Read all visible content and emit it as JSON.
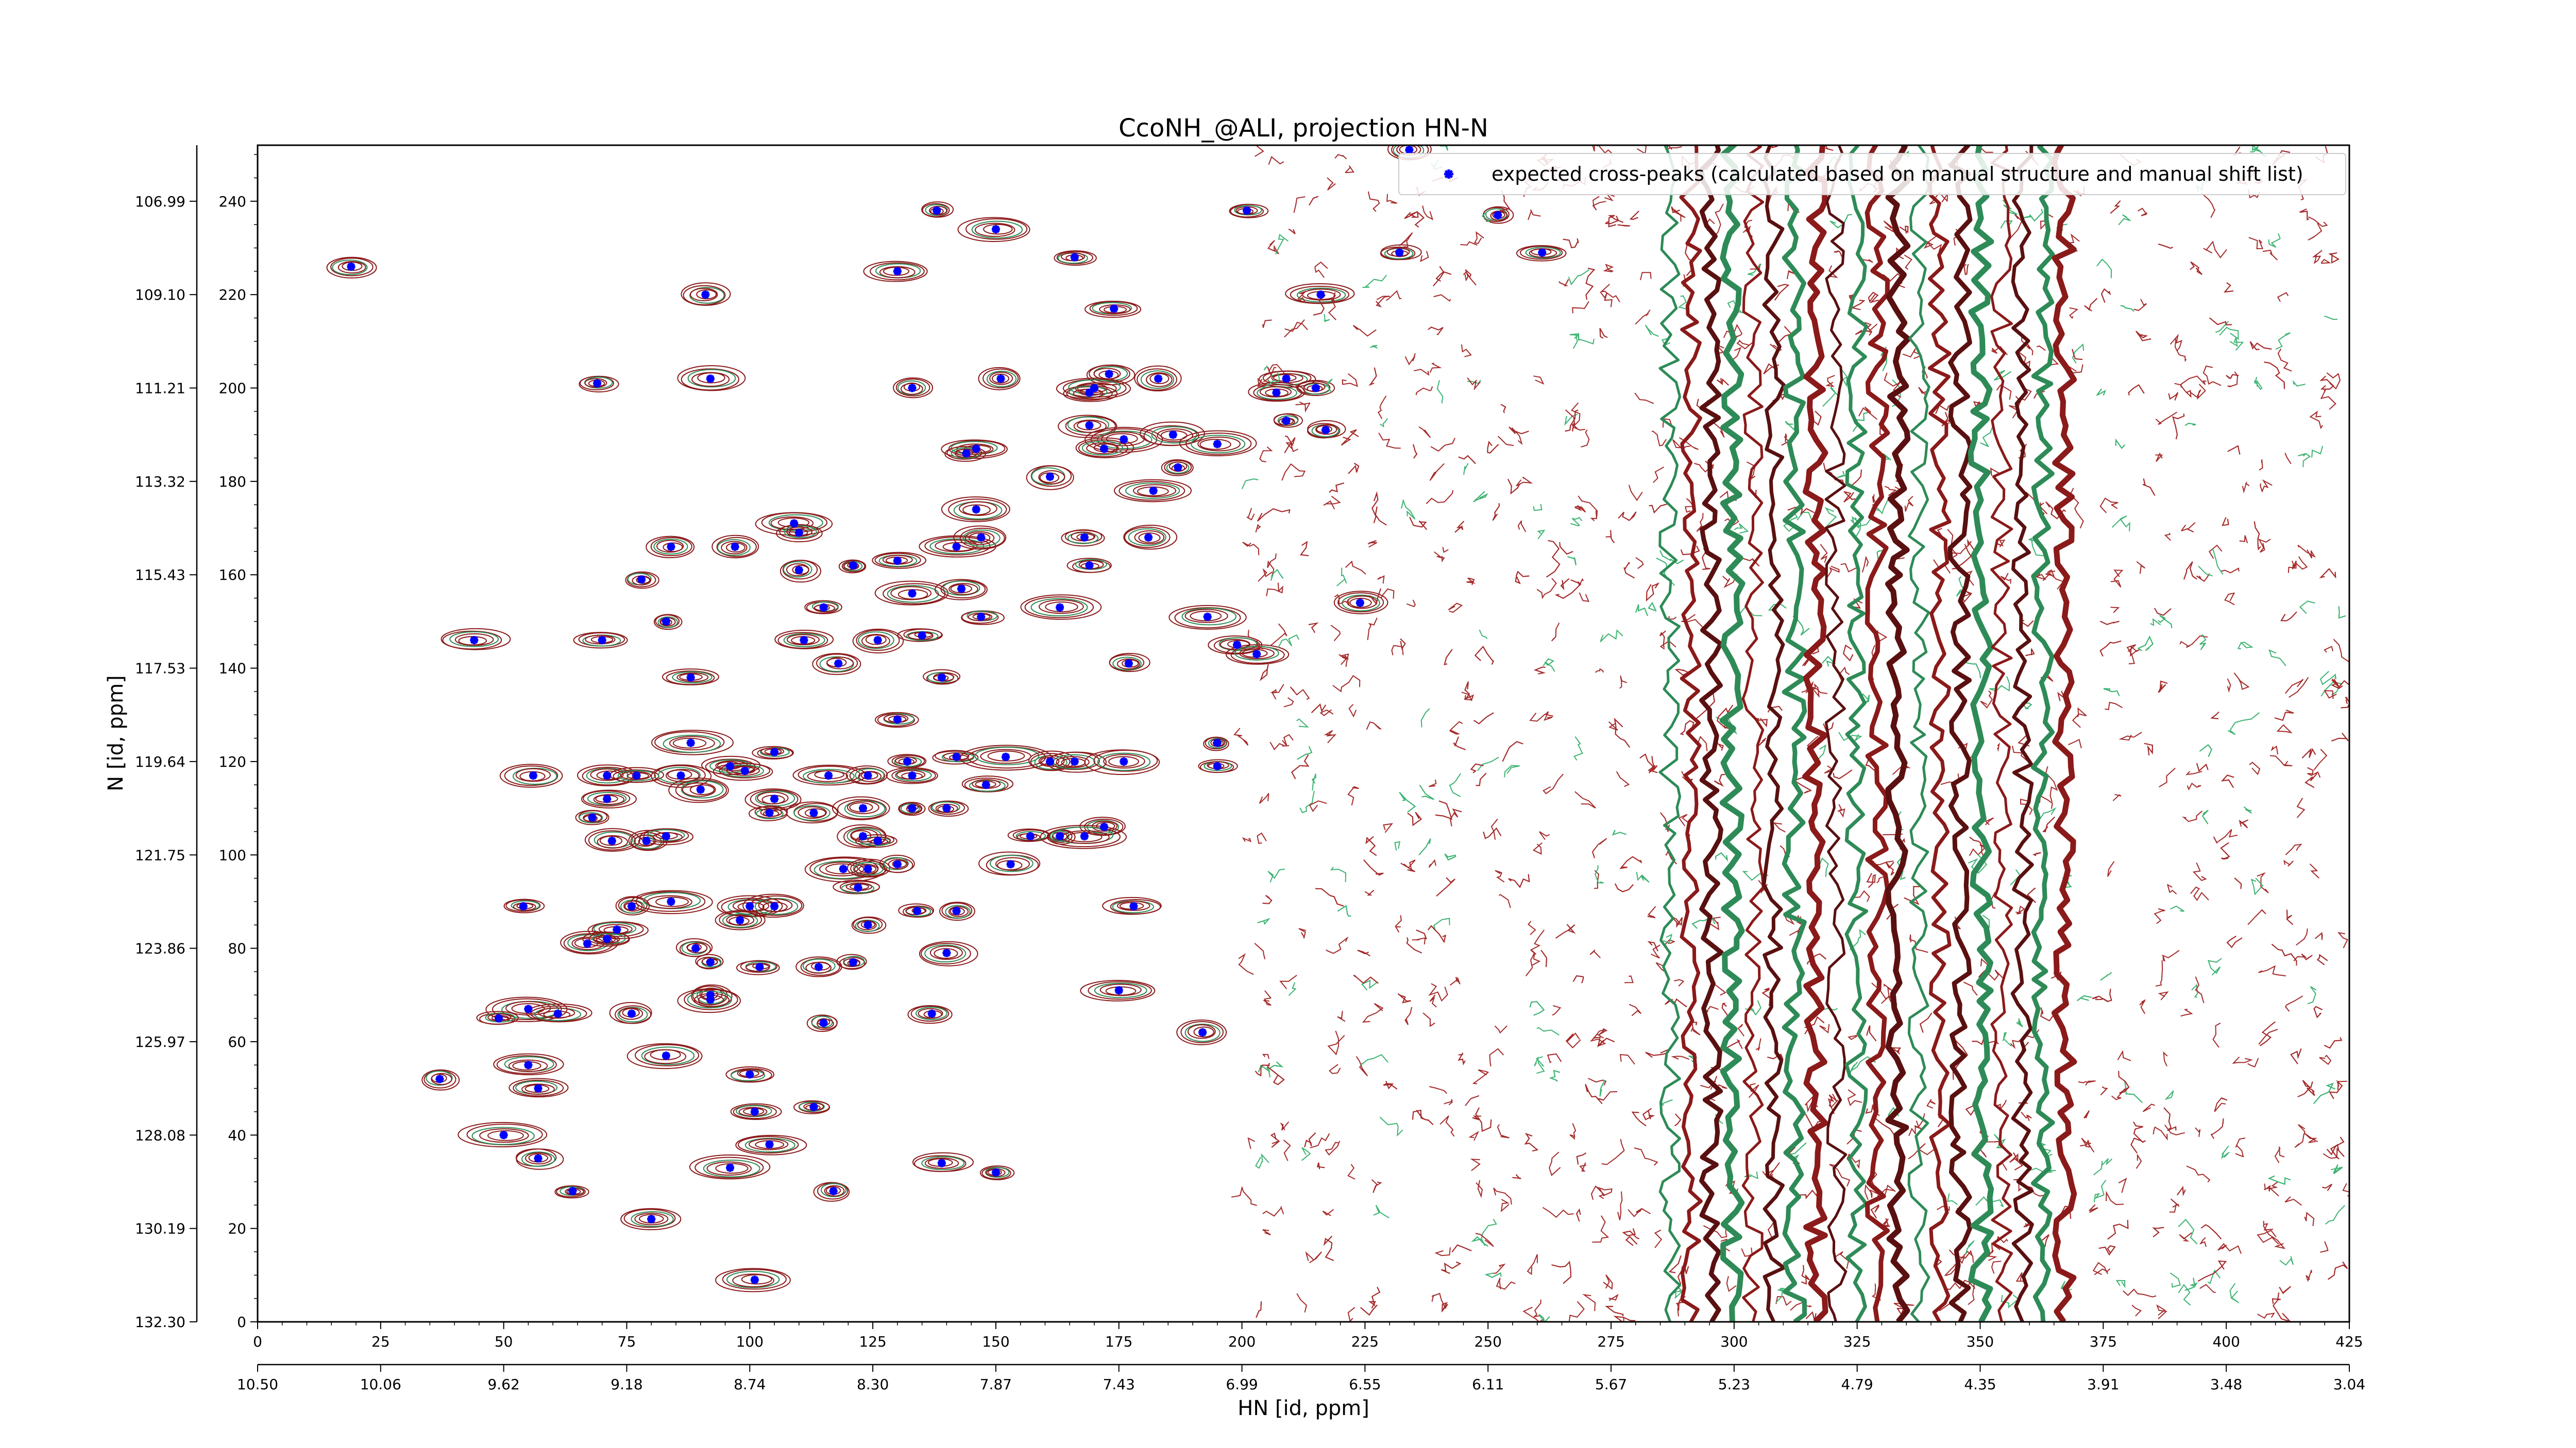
{
  "chart_data": {
    "type": "scatter",
    "title": "CcoNH_@ALI, projection HN-N",
    "xlabel": "HN [id, ppm]",
    "ylabel": "N [id, ppm]",
    "xlim": [
      0,
      425
    ],
    "ylim": [
      0,
      252
    ],
    "x_ticks": [
      0,
      25,
      50,
      75,
      100,
      125,
      150,
      175,
      200,
      225,
      250,
      275,
      300,
      325,
      350,
      375,
      400,
      425
    ],
    "y_ticks": [
      0,
      20,
      40,
      60,
      80,
      100,
      120,
      140,
      160,
      180,
      200,
      220,
      240
    ],
    "x_ppm_ticks": [
      "10.50",
      "10.06",
      "9.62",
      "9.18",
      "8.74",
      "8.30",
      "7.87",
      "7.43",
      "6.99",
      "6.55",
      "6.11",
      "5.67",
      "5.23",
      "4.79",
      "4.35",
      "3.91",
      "3.48",
      "3.04"
    ],
    "y_ppm_ticks": [
      "132.30",
      "130.19",
      "128.08",
      "125.97",
      "123.86",
      "121.75",
      "119.64",
      "117.53",
      "115.43",
      "113.32",
      "111.21",
      "109.10",
      "106.99"
    ],
    "grid": false,
    "legend_position": "top-right",
    "series": [
      {
        "name": "expected cross-peaks (calculated based on manual structure and manual shift list)",
        "color": "#0000ff",
        "marker": "x",
        "points": [
          [
            19,
            226
          ],
          [
            91,
            220
          ],
          [
            69,
            201
          ],
          [
            92,
            202
          ],
          [
            133,
            200
          ],
          [
            138,
            238
          ],
          [
            130,
            225
          ],
          [
            150,
            234
          ],
          [
            166,
            228
          ],
          [
            174,
            217
          ],
          [
            216,
            220
          ],
          [
            234,
            251
          ],
          [
            201,
            238
          ],
          [
            252,
            237
          ],
          [
            232,
            229
          ],
          [
            261,
            229
          ],
          [
            151,
            202
          ],
          [
            173,
            203
          ],
          [
            183,
            202
          ],
          [
            170,
            200
          ],
          [
            169,
            199
          ],
          [
            209,
            202
          ],
          [
            215,
            200
          ],
          [
            207,
            199
          ],
          [
            169,
            192
          ],
          [
            176,
            189
          ],
          [
            186,
            190
          ],
          [
            195,
            188
          ],
          [
            209,
            193
          ],
          [
            217,
            191
          ],
          [
            172,
            187
          ],
          [
            146,
            187
          ],
          [
            144,
            186
          ],
          [
            161,
            181
          ],
          [
            187,
            183
          ],
          [
            182,
            178
          ],
          [
            146,
            174
          ],
          [
            168,
            168
          ],
          [
            181,
            168
          ],
          [
            142,
            166
          ],
          [
            109,
            171
          ],
          [
            110,
            169
          ],
          [
            121,
            162
          ],
          [
            130,
            163
          ],
          [
            147,
            168
          ],
          [
            97,
            166
          ],
          [
            110,
            161
          ],
          [
            84,
            166
          ],
          [
            78,
            159
          ],
          [
            169,
            162
          ],
          [
            133,
            156
          ],
          [
            143,
            157
          ],
          [
            147,
            151
          ],
          [
            115,
            153
          ],
          [
            163,
            153
          ],
          [
            193,
            151
          ],
          [
            224,
            154
          ],
          [
            83,
            150
          ],
          [
            44,
            146
          ],
          [
            70,
            146
          ],
          [
            111,
            146
          ],
          [
            126,
            146
          ],
          [
            135,
            147
          ],
          [
            199,
            145
          ],
          [
            203,
            143
          ],
          [
            177,
            141
          ],
          [
            118,
            141
          ],
          [
            88,
            138
          ],
          [
            139,
            138
          ],
          [
            130,
            129
          ],
          [
            88,
            124
          ],
          [
            96,
            119
          ],
          [
            105,
            122
          ],
          [
            132,
            120
          ],
          [
            142,
            121
          ],
          [
            152,
            121
          ],
          [
            161,
            120
          ],
          [
            166,
            120
          ],
          [
            176,
            120
          ],
          [
            195,
            124
          ],
          [
            195,
            119
          ],
          [
            56,
            117
          ],
          [
            71,
            117
          ],
          [
            77,
            117
          ],
          [
            86,
            117
          ],
          [
            90,
            114
          ],
          [
            105,
            112
          ],
          [
            99,
            118
          ],
          [
            116,
            117
          ],
          [
            124,
            117
          ],
          [
            133,
            117
          ],
          [
            148,
            115
          ],
          [
            71,
            112
          ],
          [
            104,
            109
          ],
          [
            113,
            109
          ],
          [
            123,
            110
          ],
          [
            133,
            110
          ],
          [
            140,
            110
          ],
          [
            68,
            108
          ],
          [
            72,
            103
          ],
          [
            79,
            103
          ],
          [
            83,
            104
          ],
          [
            123,
            104
          ],
          [
            126,
            103
          ],
          [
            157,
            104
          ],
          [
            163,
            104
          ],
          [
            172,
            106
          ],
          [
            168,
            104
          ],
          [
            153,
            98
          ],
          [
            119,
            97
          ],
          [
            124,
            97
          ],
          [
            130,
            98
          ],
          [
            122,
            93
          ],
          [
            54,
            89
          ],
          [
            76,
            89
          ],
          [
            84,
            90
          ],
          [
            100,
            89
          ],
          [
            105,
            89
          ],
          [
            178,
            89
          ],
          [
            134,
            88
          ],
          [
            142,
            88
          ],
          [
            98,
            86
          ],
          [
            73,
            84
          ],
          [
            124,
            85
          ],
          [
            67,
            81
          ],
          [
            71,
            82
          ],
          [
            89,
            80
          ],
          [
            140,
            79
          ],
          [
            92,
            77
          ],
          [
            102,
            76
          ],
          [
            114,
            76
          ],
          [
            121,
            77
          ],
          [
            92,
            70
          ],
          [
            92,
            69
          ],
          [
            76,
            66
          ],
          [
            55,
            67
          ],
          [
            49,
            65
          ],
          [
            61,
            66
          ],
          [
            115,
            64
          ],
          [
            137,
            66
          ],
          [
            175,
            71
          ],
          [
            192,
            62
          ],
          [
            83,
            57
          ],
          [
            55,
            55
          ],
          [
            37,
            52
          ],
          [
            100,
            53
          ],
          [
            57,
            50
          ],
          [
            101,
            45
          ],
          [
            113,
            46
          ],
          [
            50,
            40
          ],
          [
            57,
            35
          ],
          [
            104,
            38
          ],
          [
            139,
            34
          ],
          [
            150,
            32
          ],
          [
            96,
            33
          ],
          [
            64,
            28
          ],
          [
            117,
            28
          ],
          [
            80,
            22
          ],
          [
            101,
            9
          ]
        ]
      }
    ]
  }
}
